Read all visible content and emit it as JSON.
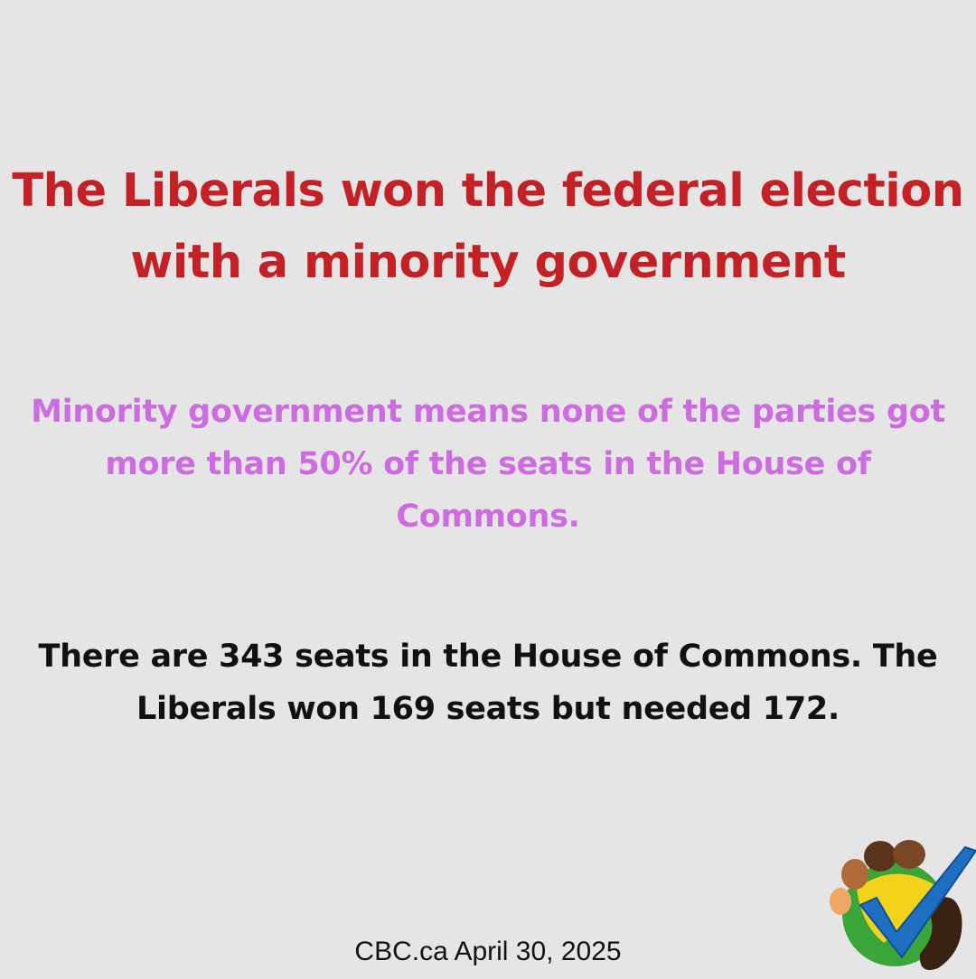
{
  "headline": {
    "line1": "The Liberals won the federal election",
    "line2": "with a minority government"
  },
  "definition": {
    "line1": "Minority government means none of the parties got",
    "line2": "more than 50% of the seats in the House of",
    "line3": "Commons."
  },
  "fact": {
    "line1": "There are 343 seats in the House of Commons. The",
    "line2": "Liberals won 169 seats but needed 172."
  },
  "source": "CBC.ca April 30, 2025",
  "logo": {
    "icon": "checkmark-footprint-logo-icon",
    "colors": {
      "check": "#1f6fc0",
      "green": "#3aa538",
      "yellow": "#f2d21a",
      "toe_light": "#f0a765",
      "toe_mid": "#b06a3a",
      "toe_dark": "#5a3418",
      "heel": "#3a2212"
    }
  },
  "colors": {
    "background": "#e5e5e5",
    "headline": "#c42126",
    "definition": "#cd6ce0",
    "fact": "#111111"
  }
}
